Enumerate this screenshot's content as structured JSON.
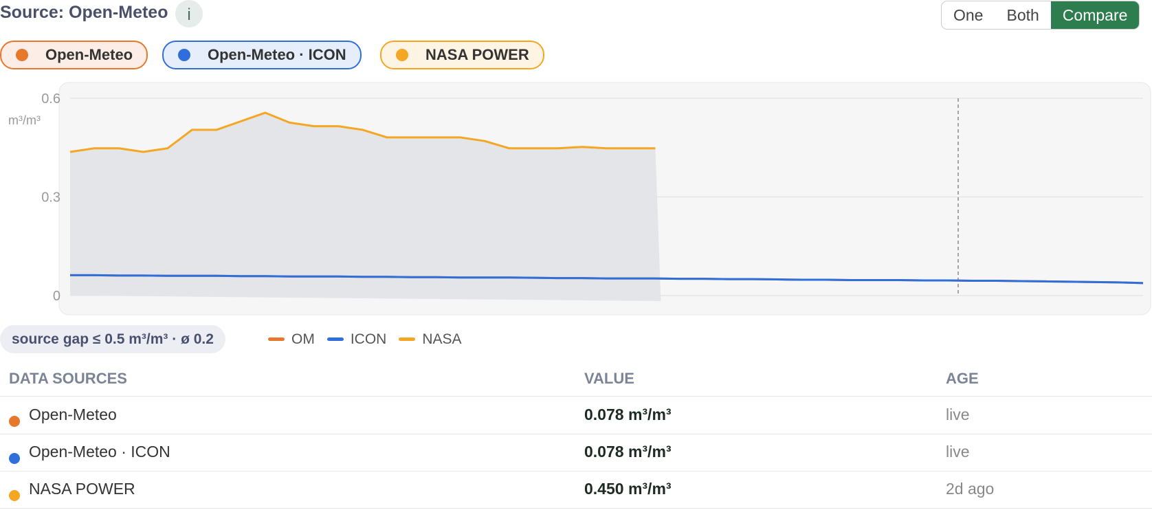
{
  "header": {
    "source": "Source: Open-Meteo",
    "info": "i",
    "modes": [
      "One",
      "Both",
      "Compare"
    ],
    "active_mode": "Compare"
  },
  "chart_data": {
    "type": "line",
    "unit": "m³/m³",
    "categories": [
      null,
      null,
      null,
      null,
      null,
      null,
      null,
      null,
      null,
      null,
      null,
      null,
      null,
      null,
      null,
      null,
      null,
      null,
      null,
      null,
      null,
      null,
      null,
      null,
      null,
      null,
      null,
      null,
      null,
      null,
      null,
      null,
      null,
      null,
      null,
      null,
      null,
      null,
      null,
      null,
      null,
      null,
      null,
      null,
      null
    ],
    "series": [
      {
        "name": "Open-Meteo",
        "color": "#e8772e",
        "values": [
          0.062,
          0.062,
          0.061,
          0.061,
          0.06,
          0.06,
          0.06,
          0.059,
          0.059,
          0.058,
          0.058,
          0.058,
          0.057,
          0.057,
          0.056,
          0.056,
          0.055,
          0.055,
          0.055,
          0.054,
          0.053,
          0.053,
          0.052,
          0.052,
          0.052,
          0.051,
          0.051,
          0.05,
          0.05,
          0.049,
          0.048,
          0.048,
          0.047,
          0.047,
          0.047,
          0.046,
          0.046,
          0.045,
          0.045,
          0.044,
          0.043,
          0.042,
          0.041,
          0.04,
          0.038
        ]
      },
      {
        "name": "Open-Meteo · ICON",
        "color": "#2f6fdc",
        "values": [
          0.062,
          0.062,
          0.061,
          0.061,
          0.06,
          0.06,
          0.06,
          0.059,
          0.059,
          0.058,
          0.058,
          0.058,
          0.057,
          0.057,
          0.056,
          0.056,
          0.055,
          0.055,
          0.055,
          0.054,
          0.053,
          0.053,
          0.052,
          0.052,
          0.052,
          0.051,
          0.051,
          0.05,
          0.05,
          0.049,
          0.048,
          0.048,
          0.047,
          0.047,
          0.047,
          0.046,
          0.046,
          0.045,
          0.045,
          0.044,
          0.043,
          0.042,
          0.041,
          0.04,
          0.038
        ]
      },
      {
        "name": "NASA POWER",
        "color": "#f5a623",
        "area": true,
        "values": [
          0.437,
          0.448,
          0.448,
          0.437,
          0.448,
          0.504,
          0.504,
          0.53,
          0.556,
          0.526,
          0.515,
          0.515,
          0.504,
          0.481,
          0.481,
          0.481,
          0.481,
          0.47,
          0.448,
          0.448,
          0.448,
          0.452,
          0.448,
          0.448,
          0.448,
          null,
          null,
          null,
          null,
          null,
          null,
          null,
          null,
          null,
          null,
          null,
          null,
          null,
          null,
          null,
          null,
          null,
          null,
          null,
          null
        ]
      }
    ],
    "ylim": [
      0,
      0.6
    ],
    "yticks": [
      0,
      0.3,
      0.6
    ],
    "grid": true
  },
  "summary": {
    "badge": "source gap ≤ 0.5 m³/m³ · ø 0.2",
    "legend": [
      "OM",
      "ICON",
      "NASA"
    ]
  },
  "table": {
    "columns": [
      "DATA SOURCES",
      "VALUE",
      "AGE"
    ],
    "rows": [
      [
        "Open-Meteo",
        "0.078 m³/m³",
        "live"
      ],
      [
        "Open-Meteo · ICON",
        "0.078 m³/m³",
        "live"
      ],
      [
        "NASA POWER",
        "0.450 m³/m³",
        "2d ago"
      ]
    ]
  }
}
